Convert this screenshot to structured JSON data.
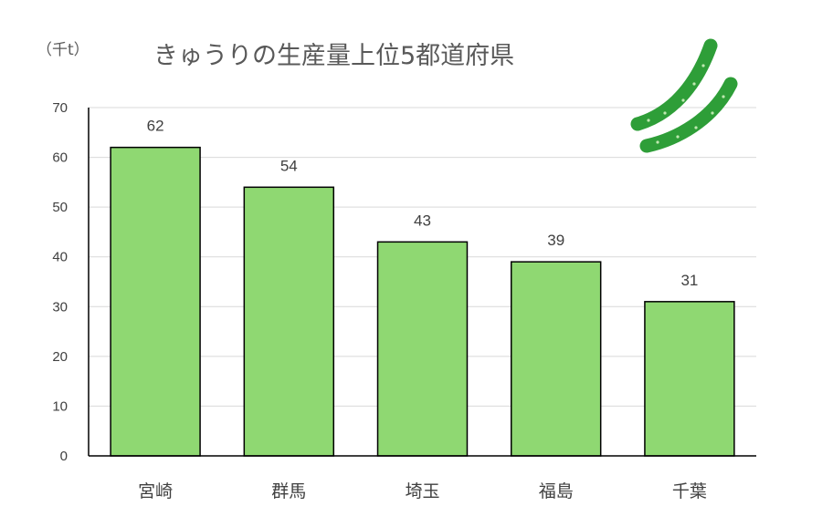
{
  "chart_data": {
    "type": "bar",
    "title": "きゅうりの生産量上位5都道府県",
    "unit_label": "（千t）",
    "categories": [
      "宮崎",
      "群馬",
      "埼玉",
      "福島",
      "千葉"
    ],
    "values": [
      62,
      54,
      43,
      39,
      31
    ],
    "ylim": [
      0,
      70
    ],
    "yticks": [
      0,
      10,
      20,
      30,
      40,
      50,
      60,
      70
    ],
    "grid": true,
    "bar_color": "#8fd872",
    "bar_edge_color": "#000000",
    "data_labels": true,
    "decoration": "cucumber-illustration",
    "decoration_color": "#2e9e38"
  }
}
